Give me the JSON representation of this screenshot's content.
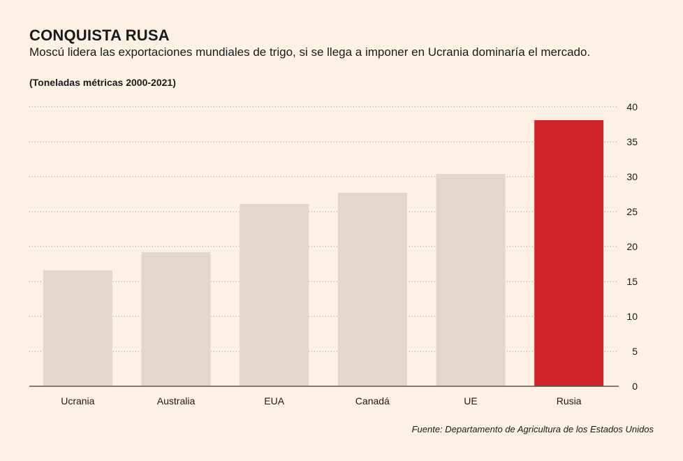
{
  "header": {
    "title": "CONQUISTA RUSA",
    "subtitle": "Moscú lidera las exportaciones mundiales de trigo, si se llega a imponer en Ucrania dominaría el mercado.",
    "unit_note": "(Toneladas métricas 2000-2021)"
  },
  "footer": {
    "source": "Fuente: Departamento de Agricultura de los Estados Unidos"
  },
  "colors": {
    "background": "#fdf1e6",
    "bar_default": "#e3d6cc",
    "bar_highlight": "#d0222a",
    "grid": "#8a8a8a",
    "axis": "#555555"
  },
  "chart_data": {
    "type": "bar",
    "categories": [
      "Ucrania",
      "Australia",
      "EUA",
      "Canadá",
      "UE",
      "Rusia"
    ],
    "values": [
      16.6,
      19.2,
      26.1,
      27.7,
      30.4,
      38.1
    ],
    "highlight": "Rusia",
    "yticks": [
      "0",
      "5",
      "10",
      "15",
      "20",
      "25",
      "30",
      "35",
      "40"
    ],
    "ylim": [
      0,
      40
    ],
    "y_axis_side": "right",
    "grid": true,
    "grid_style": "dotted",
    "legend": "none"
  }
}
